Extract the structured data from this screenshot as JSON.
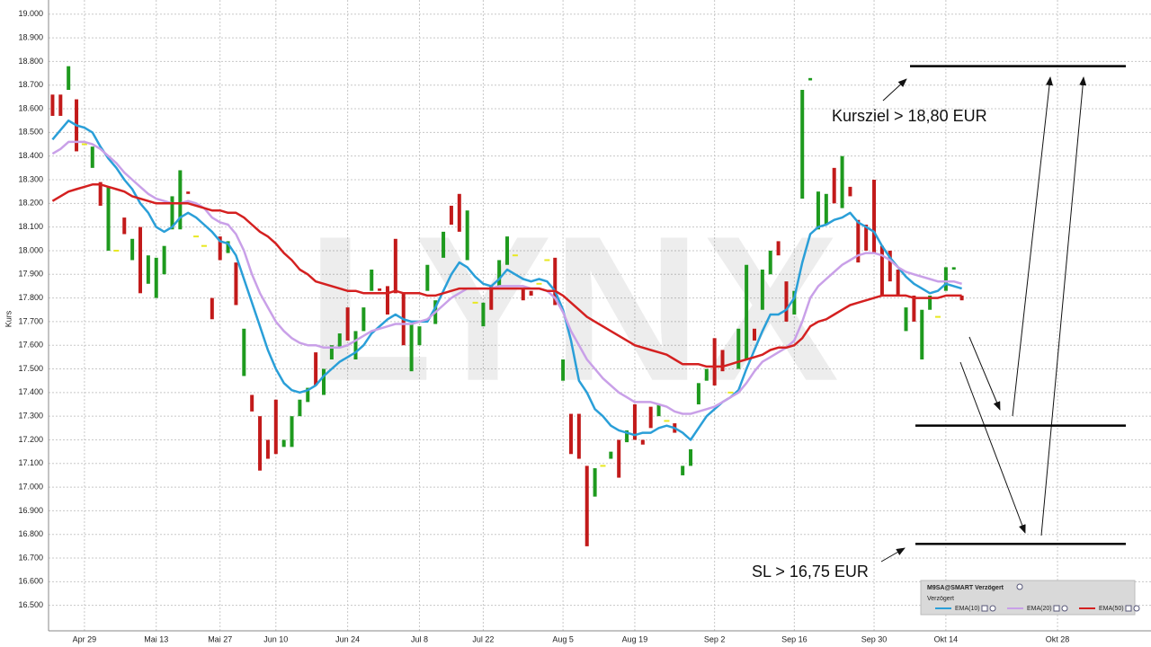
{
  "chart_data": {
    "type": "candlestick",
    "y_label": "Kurs",
    "watermark": "LYNX",
    "ylim": [
      16.4,
      19.06
    ],
    "yticks": [
      {
        "value": 16.5,
        "label": "16.500"
      },
      {
        "value": 16.6,
        "label": "16.600"
      },
      {
        "value": 16.7,
        "label": "16.700"
      },
      {
        "value": 16.8,
        "label": "16.800"
      },
      {
        "value": 16.9,
        "label": "16.900"
      },
      {
        "value": 17.0,
        "label": "17.000"
      },
      {
        "value": 17.1,
        "label": "17.100"
      },
      {
        "value": 17.2,
        "label": "17.200"
      },
      {
        "value": 17.3,
        "label": "17.300"
      },
      {
        "value": 17.4,
        "label": "17.400"
      },
      {
        "value": 17.5,
        "label": "17.500"
      },
      {
        "value": 17.6,
        "label": "17.600"
      },
      {
        "value": 17.7,
        "label": "17.700"
      },
      {
        "value": 17.8,
        "label": "17.800"
      },
      {
        "value": 17.9,
        "label": "17.900"
      },
      {
        "value": 18.0,
        "label": "18.000"
      },
      {
        "value": 18.1,
        "label": "18.100"
      },
      {
        "value": 18.2,
        "label": "18.200"
      },
      {
        "value": 18.3,
        "label": "18.300"
      },
      {
        "value": 18.4,
        "label": "18.400"
      },
      {
        "value": 18.5,
        "label": "18.500"
      },
      {
        "value": 18.6,
        "label": "18.600"
      },
      {
        "value": 18.7,
        "label": "18.700"
      },
      {
        "value": 18.8,
        "label": "18.800"
      },
      {
        "value": 18.9,
        "label": "18.900"
      },
      {
        "value": 19.0,
        "label": "19.000"
      }
    ],
    "grid": true,
    "up_color": "#1e9a1e",
    "down_color": "#c21a1a",
    "flat_color": "#e8e820",
    "categories": [
      null,
      null,
      null,
      null,
      "Apr 29",
      null,
      null,
      null,
      null,
      null,
      null,
      null,
      null,
      "Mai 13",
      null,
      null,
      null,
      null,
      null,
      null,
      null,
      "Mai 27",
      null,
      null,
      null,
      null,
      null,
      null,
      "Jun 10",
      null,
      null,
      null,
      null,
      null,
      null,
      null,
      null,
      "Jun 24",
      null,
      null,
      null,
      null,
      null,
      null,
      null,
      null,
      "Jul 8",
      null,
      null,
      null,
      null,
      null,
      null,
      null,
      "Jul 22",
      null,
      null,
      null,
      null,
      null,
      null,
      null,
      null,
      null,
      "Aug 5",
      null,
      null,
      null,
      null,
      null,
      null,
      null,
      null,
      "Aug 19",
      null,
      null,
      null,
      null,
      null,
      null,
      null,
      null,
      null,
      "Sep 2",
      null,
      null,
      null,
      null,
      null,
      null,
      null,
      null,
      null,
      "Sep 16",
      null,
      null,
      null,
      null,
      null,
      null,
      null,
      null,
      null,
      "Sep 30",
      null,
      null,
      null,
      null,
      null,
      null,
      null,
      null,
      "Okt 14",
      null,
      null,
      null,
      null,
      null,
      null,
      null,
      null,
      null,
      null,
      null,
      null,
      null,
      "Okt 28",
      null,
      null,
      null,
      null,
      null,
      null,
      null,
      null,
      null,
      null
    ],
    "bars": [
      [
        18.66,
        18.57
      ],
      [
        18.66,
        18.57
      ],
      [
        18.68,
        18.78
      ],
      [
        18.64,
        18.42
      ],
      [
        18.45,
        18.45
      ],
      [
        18.35,
        18.44
      ],
      [
        18.29,
        18.19
      ],
      [
        18.0,
        18.27
      ],
      [
        18.0,
        18.0
      ],
      [
        18.14,
        18.07
      ],
      [
        17.96,
        18.05
      ],
      [
        18.1,
        17.82
      ],
      [
        17.86,
        17.98
      ],
      [
        17.8,
        17.97
      ],
      [
        17.9,
        18.02
      ],
      [
        18.09,
        18.23
      ],
      [
        18.09,
        18.34
      ],
      [
        18.25,
        18.24
      ],
      [
        18.06,
        18.06
      ],
      [
        18.02,
        18.02
      ],
      [
        17.8,
        17.71
      ],
      [
        18.06,
        17.96
      ],
      [
        17.99,
        18.04
      ],
      [
        17.95,
        17.77
      ],
      [
        17.47,
        17.67
      ],
      [
        17.39,
        17.32
      ],
      [
        17.3,
        17.07
      ],
      [
        17.2,
        17.12
      ],
      [
        17.37,
        17.14
      ],
      [
        17.17,
        17.2
      ],
      [
        17.17,
        17.3
      ],
      [
        17.3,
        17.37
      ],
      [
        17.36,
        17.42
      ],
      [
        17.57,
        17.43
      ],
      [
        17.39,
        17.5
      ],
      [
        17.54,
        17.6
      ],
      [
        17.59,
        17.65
      ],
      [
        17.76,
        17.62
      ],
      [
        17.54,
        17.66
      ],
      [
        17.66,
        17.76
      ],
      [
        17.83,
        17.92
      ],
      [
        17.84,
        17.83
      ],
      [
        17.85,
        17.73
      ],
      [
        18.05,
        17.82
      ],
      [
        17.82,
        17.6
      ],
      [
        17.49,
        17.69
      ],
      [
        17.6,
        17.68
      ],
      [
        17.83,
        17.94
      ],
      [
        17.69,
        17.79
      ],
      [
        17.97,
        18.08
      ],
      [
        18.19,
        18.11
      ],
      [
        18.24,
        18.08
      ],
      [
        17.96,
        18.17
      ],
      [
        17.78,
        17.78
      ],
      [
        17.68,
        17.78
      ],
      [
        17.85,
        17.75
      ],
      [
        17.85,
        17.96
      ],
      [
        17.94,
        18.06
      ],
      [
        17.98,
        17.98
      ],
      [
        17.84,
        17.79
      ],
      [
        17.83,
        17.81
      ],
      [
        17.86,
        17.86
      ],
      [
        17.96,
        17.96
      ],
      [
        17.97,
        17.77
      ],
      [
        17.45,
        17.54
      ],
      [
        17.31,
        17.14
      ],
      [
        17.31,
        17.12
      ],
      [
        17.09,
        16.75
      ],
      [
        16.96,
        17.08
      ],
      [
        17.09,
        17.09
      ],
      [
        17.12,
        17.15
      ],
      [
        17.2,
        17.04
      ],
      [
        17.19,
        17.24
      ],
      [
        17.35,
        17.2
      ],
      [
        17.2,
        17.18
      ],
      [
        17.34,
        17.25
      ],
      [
        17.3,
        17.35
      ],
      [
        17.28,
        17.28
      ],
      [
        17.27,
        17.23
      ],
      [
        17.05,
        17.09
      ],
      [
        17.09,
        17.16
      ],
      [
        17.35,
        17.44
      ],
      [
        17.45,
        17.5
      ],
      [
        17.63,
        17.43
      ],
      [
        17.58,
        17.49
      ],
      [
        17.4,
        17.4
      ],
      [
        17.5,
        17.67
      ],
      [
        17.54,
        17.94
      ],
      [
        17.67,
        17.62
      ],
      [
        17.75,
        17.92
      ],
      [
        17.9,
        18.0
      ],
      [
        18.04,
        17.98
      ],
      [
        17.87,
        17.7
      ],
      [
        17.73,
        17.83
      ],
      [
        18.22,
        18.68
      ],
      [
        18.72,
        18.73
      ],
      [
        18.09,
        18.25
      ],
      [
        18.11,
        18.24
      ],
      [
        18.35,
        18.2
      ],
      [
        18.18,
        18.4
      ],
      [
        18.27,
        18.23
      ],
      [
        18.13,
        17.95
      ],
      [
        18.11,
        18.0
      ],
      [
        18.3,
        17.99
      ],
      [
        18.02,
        17.81
      ],
      [
        18.0,
        17.87
      ],
      [
        17.92,
        17.81
      ],
      [
        17.66,
        17.76
      ],
      [
        17.81,
        17.7
      ],
      [
        17.54,
        17.75
      ],
      [
        17.75,
        17.81
      ],
      [
        17.72,
        17.72
      ],
      [
        17.83,
        17.93
      ],
      [
        17.92,
        17.93
      ],
      [
        17.81,
        17.79
      ],
      null,
      null,
      null,
      null,
      null,
      null,
      null,
      null,
      null,
      null,
      null,
      null,
      null,
      null,
      null,
      null,
      null,
      null,
      null,
      null,
      null,
      null
    ],
    "series": [
      {
        "name": "EMA(10)",
        "color": "#2a9fd8",
        "values": [
          18.47,
          18.51,
          18.55,
          18.53,
          18.52,
          18.5,
          18.44,
          18.39,
          18.35,
          18.3,
          18.26,
          18.2,
          18.16,
          18.1,
          18.08,
          18.1,
          18.14,
          18.16,
          18.14,
          18.11,
          18.08,
          18.04,
          18.03,
          17.98,
          17.88,
          17.78,
          17.68,
          17.58,
          17.5,
          17.44,
          17.41,
          17.4,
          17.41,
          17.43,
          17.47,
          17.5,
          17.53,
          17.55,
          17.57,
          17.6,
          17.65,
          17.68,
          17.71,
          17.73,
          17.71,
          17.7,
          17.7,
          17.7,
          17.76,
          17.83,
          17.9,
          17.95,
          17.93,
          17.89,
          17.86,
          17.85,
          17.88,
          17.92,
          17.9,
          17.88,
          17.87,
          17.88,
          17.87,
          17.83,
          17.75,
          17.62,
          17.45,
          17.4,
          17.33,
          17.3,
          17.26,
          17.24,
          17.23,
          17.22,
          17.23,
          17.23,
          17.25,
          17.26,
          17.25,
          17.23,
          17.2,
          17.25,
          17.3,
          17.33,
          17.36,
          17.38,
          17.41,
          17.5,
          17.58,
          17.66,
          17.73,
          17.73,
          17.75,
          17.8,
          17.95,
          18.07,
          18.1,
          18.11,
          18.13,
          18.14,
          18.16,
          18.12,
          18.1,
          18.08,
          18.02,
          17.97,
          17.93,
          17.89,
          17.86,
          17.84,
          17.82,
          17.83,
          17.86,
          17.85,
          17.84,
          null,
          null,
          null,
          null,
          null,
          null,
          null,
          null,
          null,
          null,
          null,
          null,
          null,
          null,
          null,
          null,
          null,
          null,
          null,
          null,
          null,
          null
        ]
      },
      {
        "name": "EMA(20)",
        "color": "#c9a0e8",
        "values": [
          18.41,
          18.43,
          18.46,
          18.46,
          18.46,
          18.45,
          18.43,
          18.4,
          18.37,
          18.33,
          18.3,
          18.27,
          18.24,
          18.22,
          18.21,
          18.2,
          18.2,
          18.21,
          18.2,
          18.18,
          18.14,
          18.12,
          18.11,
          18.07,
          18.0,
          17.9,
          17.82,
          17.76,
          17.7,
          17.66,
          17.63,
          17.61,
          17.6,
          17.6,
          17.59,
          17.59,
          17.59,
          17.6,
          17.62,
          17.64,
          17.66,
          17.67,
          17.68,
          17.69,
          17.69,
          17.69,
          17.7,
          17.71,
          17.74,
          17.77,
          17.8,
          17.82,
          17.84,
          17.84,
          17.84,
          17.84,
          17.85,
          17.85,
          17.85,
          17.85,
          17.84,
          17.84,
          17.83,
          17.8,
          17.74,
          17.66,
          17.6,
          17.54,
          17.5,
          17.46,
          17.43,
          17.4,
          17.38,
          17.36,
          17.36,
          17.36,
          17.35,
          17.34,
          17.32,
          17.31,
          17.31,
          17.32,
          17.33,
          17.34,
          17.36,
          17.38,
          17.4,
          17.44,
          17.49,
          17.53,
          17.55,
          17.57,
          17.59,
          17.62,
          17.7,
          17.8,
          17.85,
          17.88,
          17.91,
          17.94,
          17.96,
          17.98,
          17.99,
          17.99,
          17.98,
          17.96,
          17.93,
          17.91,
          17.9,
          17.89,
          17.88,
          17.87,
          17.87,
          17.87,
          17.86,
          null,
          null,
          null,
          null,
          null,
          null,
          null,
          null,
          null,
          null,
          null,
          null,
          null,
          null,
          null,
          null,
          null,
          null,
          null,
          null,
          null,
          null
        ]
      },
      {
        "name": "EMA(50)",
        "color": "#d42020",
        "values": [
          18.21,
          18.23,
          18.25,
          18.26,
          18.27,
          18.28,
          18.28,
          18.27,
          18.26,
          18.25,
          18.23,
          18.22,
          18.21,
          18.2,
          18.2,
          18.2,
          18.2,
          18.2,
          18.19,
          18.18,
          18.17,
          18.17,
          18.16,
          18.16,
          18.14,
          18.11,
          18.08,
          18.06,
          18.03,
          17.99,
          17.96,
          17.92,
          17.9,
          17.87,
          17.86,
          17.85,
          17.84,
          17.83,
          17.83,
          17.82,
          17.82,
          17.82,
          17.82,
          17.83,
          17.82,
          17.82,
          17.82,
          17.81,
          17.81,
          17.82,
          17.83,
          17.84,
          17.84,
          17.84,
          17.84,
          17.84,
          17.84,
          17.84,
          17.84,
          17.84,
          17.84,
          17.84,
          17.83,
          17.83,
          17.81,
          17.78,
          17.75,
          17.72,
          17.7,
          17.68,
          17.66,
          17.64,
          17.62,
          17.6,
          17.59,
          17.58,
          17.57,
          17.56,
          17.54,
          17.52,
          17.52,
          17.52,
          17.51,
          17.51,
          17.51,
          17.52,
          17.53,
          17.54,
          17.55,
          17.56,
          17.58,
          17.59,
          17.59,
          17.6,
          17.63,
          17.68,
          17.7,
          17.71,
          17.73,
          17.75,
          17.77,
          17.78,
          17.79,
          17.8,
          17.81,
          17.81,
          17.81,
          17.81,
          17.8,
          17.8,
          17.8,
          17.8,
          17.81,
          17.81,
          17.81,
          null,
          null,
          null,
          null,
          null,
          null,
          null,
          null,
          null,
          null,
          null,
          null,
          null,
          null,
          null,
          null,
          null,
          null,
          null,
          null,
          null,
          null
        ]
      }
    ],
    "horizontal_lines": [
      18.78,
      17.26,
      16.76
    ],
    "annotations": [
      "Kursziel > 18,80 EUR",
      "SL > 16,75 EUR"
    ],
    "legend_title": "M9SA@SMART Verzögert",
    "legend_subtitle": "Verzögert"
  }
}
